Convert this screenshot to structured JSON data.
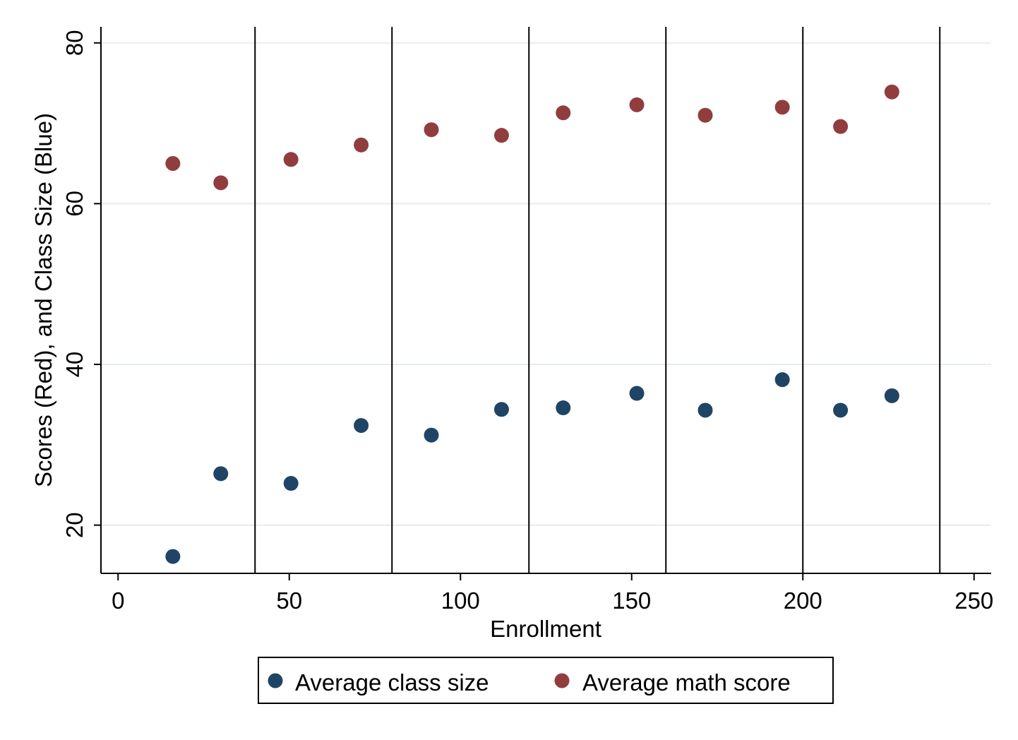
{
  "chart_data": {
    "type": "scatter",
    "xlabel": "Enrollment",
    "ylabel": "Scores (Red), and Class Size (Blue)",
    "xlim": [
      -5,
      255
    ],
    "ylim": [
      14,
      82
    ],
    "x_ticks": [
      0,
      50,
      100,
      150,
      200,
      250
    ],
    "y_ticks": [
      20,
      40,
      60,
      80
    ],
    "vertical_lines": [
      40,
      80,
      120,
      160,
      200,
      240
    ],
    "grid": "horizontal",
    "legend_position": "bottom",
    "series": [
      {
        "name": "Average class size",
        "color": "#1f4466",
        "points": [
          [
            16,
            16.1
          ],
          [
            30,
            26.4
          ],
          [
            50.5,
            25.2
          ],
          [
            71,
            32.4
          ],
          [
            91.5,
            31.2
          ],
          [
            112,
            34.4
          ],
          [
            130,
            34.6
          ],
          [
            151.5,
            36.4
          ],
          [
            171.5,
            34.3
          ],
          [
            194,
            38.1
          ],
          [
            211,
            34.3
          ],
          [
            226,
            36.1
          ]
        ]
      },
      {
        "name": "Average math score",
        "color": "#913d3e",
        "points": [
          [
            16,
            65.0
          ],
          [
            30,
            62.6
          ],
          [
            50.5,
            65.5
          ],
          [
            71,
            67.3
          ],
          [
            91.5,
            69.2
          ],
          [
            112,
            68.5
          ],
          [
            130,
            71.3
          ],
          [
            151.5,
            72.3
          ],
          [
            171.5,
            71.0
          ],
          [
            194,
            72.0
          ],
          [
            211,
            69.6
          ],
          [
            226,
            73.9
          ]
        ]
      }
    ]
  }
}
